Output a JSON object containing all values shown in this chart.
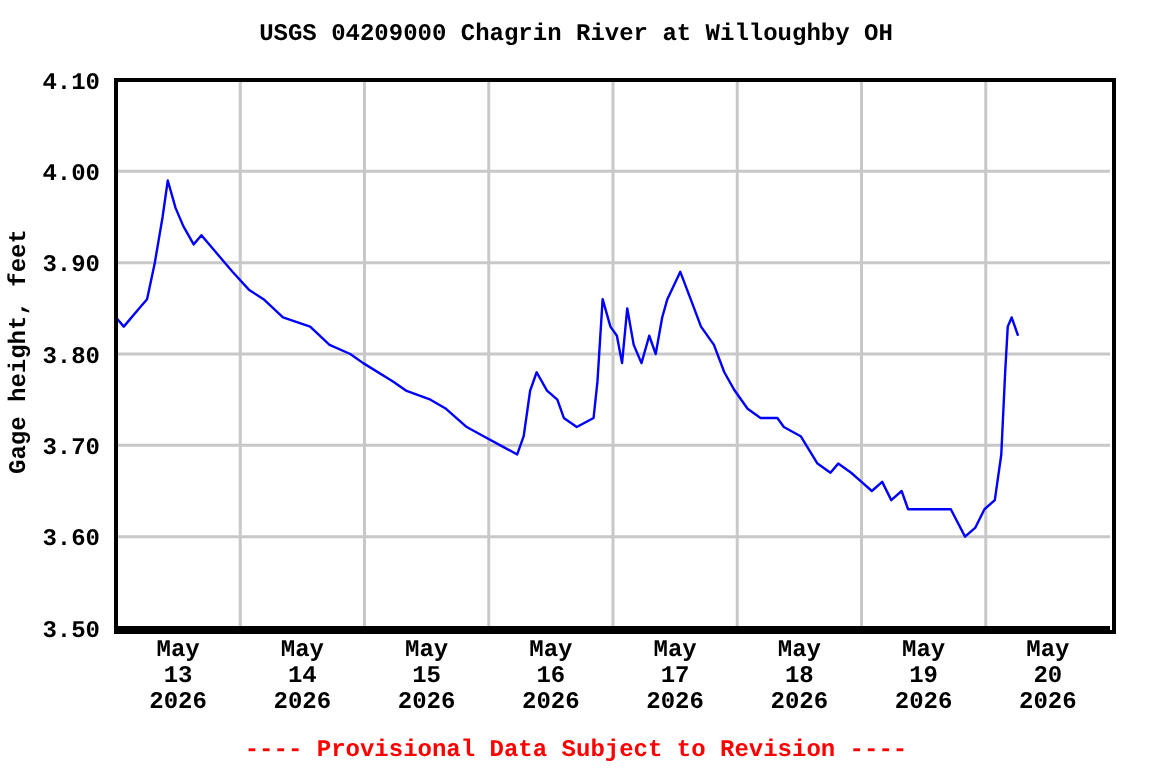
{
  "chart_data": {
    "type": "line",
    "title": "USGS 04209000 Chagrin River at Willoughby OH",
    "ylabel": "Gage height, feet",
    "annotations": [
      "---- Provisional Data Subject to Revision ----"
    ],
    "x": [
      "2026-05-13T00:00",
      "2026-05-13T01:30",
      "2026-05-13T04:30",
      "2026-05-13T06:00",
      "2026-05-13T07:30",
      "2026-05-13T09:00",
      "2026-05-13T10:00",
      "2026-05-13T11:30",
      "2026-05-13T13:00",
      "2026-05-13T15:00",
      "2026-05-13T16:30",
      "2026-05-13T19:30",
      "2026-05-13T22:30",
      "2026-05-14T01:45",
      "2026-05-14T04:30",
      "2026-05-14T08:15",
      "2026-05-14T13:30",
      "2026-05-14T17:15",
      "2026-05-14T21:15",
      "2026-05-14T23:45",
      "2026-05-15T05:30",
      "2026-05-15T08:00",
      "2026-05-15T12:45",
      "2026-05-15T15:45",
      "2026-05-15T19:45",
      "2026-05-15T23:00",
      "2026-05-16T02:15",
      "2026-05-16T05:30",
      "2026-05-16T06:45",
      "2026-05-16T08:00",
      "2026-05-16T09:15",
      "2026-05-16T11:15",
      "2026-05-16T13:15",
      "2026-05-16T14:30",
      "2026-05-16T17:00",
      "2026-05-16T20:15",
      "2026-05-16T21:00",
      "2026-05-16T22:00",
      "2026-05-16T23:30",
      "2026-05-17T00:45",
      "2026-05-17T01:45",
      "2026-05-17T02:45",
      "2026-05-17T04:00",
      "2026-05-17T05:30",
      "2026-05-17T07:00",
      "2026-05-17T08:15",
      "2026-05-17T09:30",
      "2026-05-17T10:30",
      "2026-05-17T13:00",
      "2026-05-17T15:00",
      "2026-05-17T17:00",
      "2026-05-17T19:30",
      "2026-05-17T21:30",
      "2026-05-17T23:30",
      "2026-05-18T02:00",
      "2026-05-18T04:30",
      "2026-05-18T07:45",
      "2026-05-18T09:00",
      "2026-05-18T12:15",
      "2026-05-18T15:30",
      "2026-05-18T18:00",
      "2026-05-18T19:30",
      "2026-05-18T22:00",
      "2026-05-19T00:00",
      "2026-05-19T02:00",
      "2026-05-19T04:00",
      "2026-05-19T05:45",
      "2026-05-19T07:45",
      "2026-05-19T09:00",
      "2026-05-19T13:30",
      "2026-05-19T17:15",
      "2026-05-19T20:00",
      "2026-05-19T22:00",
      "2026-05-19T23:45",
      "2026-05-20T01:45",
      "2026-05-20T03:00",
      "2026-05-20T03:45",
      "2026-05-20T04:15",
      "2026-05-20T05:00",
      "2026-05-20T06:15"
    ],
    "series": [
      {
        "color": "#0000ff",
        "values": [
          3.84,
          3.83,
          3.85,
          3.86,
          3.9,
          3.95,
          3.99,
          3.96,
          3.94,
          3.92,
          3.93,
          3.91,
          3.89,
          3.87,
          3.86,
          3.84,
          3.83,
          3.81,
          3.8,
          3.79,
          3.77,
          3.76,
          3.75,
          3.74,
          3.72,
          3.71,
          3.7,
          3.69,
          3.71,
          3.76,
          3.78,
          3.76,
          3.75,
          3.73,
          3.72,
          3.73,
          3.77,
          3.86,
          3.83,
          3.82,
          3.79,
          3.85,
          3.81,
          3.79,
          3.82,
          3.8,
          3.84,
          3.86,
          3.89,
          3.86,
          3.83,
          3.81,
          3.78,
          3.76,
          3.74,
          3.73,
          3.73,
          3.72,
          3.71,
          3.68,
          3.67,
          3.68,
          3.67,
          3.66,
          3.65,
          3.66,
          3.64,
          3.65,
          3.63,
          3.63,
          3.63,
          3.6,
          3.61,
          3.63,
          3.64,
          3.69,
          3.78,
          3.83,
          3.84,
          3.82
        ]
      }
    ],
    "xlim": [
      "2026-05-13T00:00",
      "2026-05-21T00:00"
    ],
    "xticks": [
      {
        "value": "2026-05-13T12:00",
        "label": "May\n13\n2026"
      },
      {
        "value": "2026-05-14T00:00",
        "label": null
      },
      {
        "value": "2026-05-14T12:00",
        "label": "May\n14\n2026"
      },
      {
        "value": "2026-05-15T00:00",
        "label": null
      },
      {
        "value": "2026-05-15T12:00",
        "label": "May\n15\n2026"
      },
      {
        "value": "2026-05-16T00:00",
        "label": null
      },
      {
        "value": "2026-05-16T12:00",
        "label": "May\n16\n2026"
      },
      {
        "value": "2026-05-17T00:00",
        "label": null
      },
      {
        "value": "2026-05-17T12:00",
        "label": "May\n17\n2026"
      },
      {
        "value": "2026-05-18T00:00",
        "label": null
      },
      {
        "value": "2026-05-18T12:00",
        "label": "May\n18\n2026"
      },
      {
        "value": "2026-05-19T00:00",
        "label": null
      },
      {
        "value": "2026-05-19T12:00",
        "label": "May\n19\n2026"
      },
      {
        "value": "2026-05-20T00:00",
        "label": null
      },
      {
        "value": "2026-05-20T12:00",
        "label": "May\n20\n2026"
      }
    ],
    "ylim": [
      3.5,
      4.1
    ],
    "yticks": [
      {
        "value": 3.5,
        "label": "3.50"
      },
      {
        "value": 3.6,
        "label": "3.60"
      },
      {
        "value": 3.7,
        "label": "3.70"
      },
      {
        "value": 3.8,
        "label": "3.80"
      },
      {
        "value": 3.9,
        "label": "3.90"
      },
      {
        "value": 4.0,
        "label": "4.00"
      },
      {
        "value": 4.1,
        "label": "4.10"
      }
    ],
    "grid": true,
    "legend": false,
    "marker": "none",
    "line_style": "solid"
  }
}
